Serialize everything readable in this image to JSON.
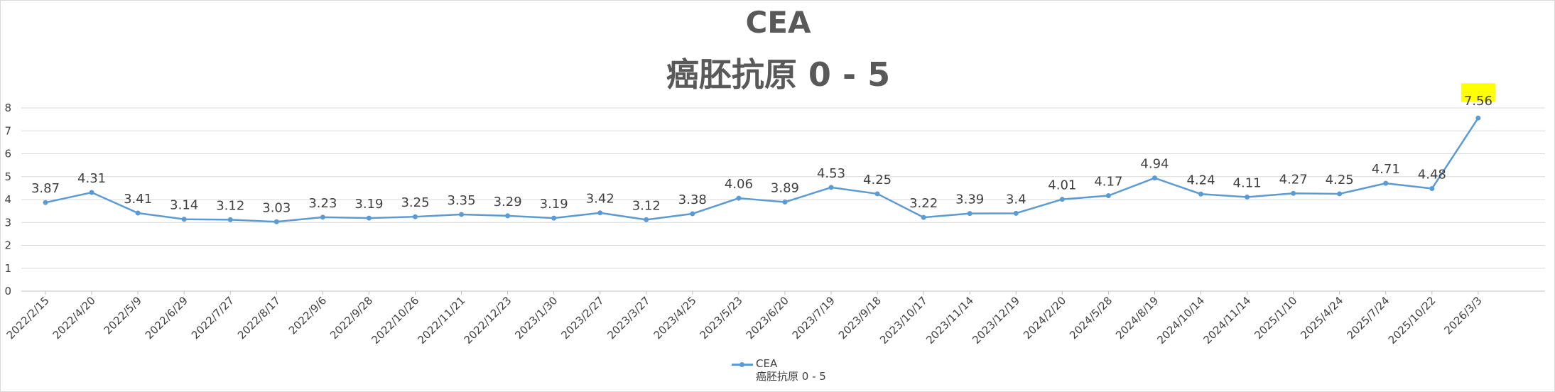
{
  "chart_data": {
    "type": "line",
    "title": "CEA",
    "subtitle": "癌胚抗原 0 - 5",
    "xlabel": "",
    "ylabel": "",
    "ylim": [
      0,
      8
    ],
    "yticks": [
      0,
      1,
      2,
      3,
      4,
      5,
      6,
      7,
      8
    ],
    "grid": true,
    "legend_position": "bottom",
    "categories": [
      "2022/2/15",
      "2022/4/20",
      "2022/5/9",
      "2022/6/29",
      "2022/7/27",
      "2022/8/17",
      "2022/9/6",
      "2022/9/28",
      "2022/10/26",
      "2022/11/21",
      "2022/12/23",
      "2023/1/30",
      "2023/2/27",
      "2023/3/27",
      "2023/4/25",
      "2023/5/23",
      "2023/6/20",
      "2023/7/19",
      "2023/9/18",
      "2023/10/17",
      "2023/11/14",
      "2023/12/19",
      "2024/2/20",
      "2024/5/28",
      "2024/8/19",
      "2024/10/14",
      "2024/11/14",
      "2025/1/10",
      "2025/4/24",
      "2025/7/24",
      "2025/10/22",
      "2026/3/3"
    ],
    "series": [
      {
        "name": "CEA",
        "name_line2": "癌胚抗原 0 - 5",
        "color": "#5b9bd5",
        "values": [
          3.87,
          4.31,
          3.41,
          3.14,
          3.12,
          3.03,
          3.23,
          3.19,
          3.25,
          3.35,
          3.29,
          3.19,
          3.42,
          3.12,
          3.38,
          4.06,
          3.89,
          4.53,
          4.25,
          3.22,
          3.39,
          3.4,
          4.01,
          4.17,
          4.94,
          4.24,
          4.11,
          4.27,
          4.25,
          4.71,
          4.48,
          7.56
        ],
        "labels": [
          "3.87",
          "4.31",
          "3.41",
          "3.14",
          "3.12",
          "3.03",
          "3.23",
          "3.19",
          "3.25",
          "3.35",
          "3.29",
          "3.19",
          "3.42",
          "3.12",
          "3.38",
          "4.06",
          "3.89",
          "4.53",
          "4.25",
          "3.22",
          "3.39",
          "3.4",
          "4.01",
          "4.17",
          "4.94",
          "4.24",
          "4.11",
          "4.27",
          "4.25",
          "4.71",
          "4.48",
          "7.56"
        ]
      }
    ],
    "highlight": {
      "index": 31,
      "color": "#ffff00"
    }
  }
}
